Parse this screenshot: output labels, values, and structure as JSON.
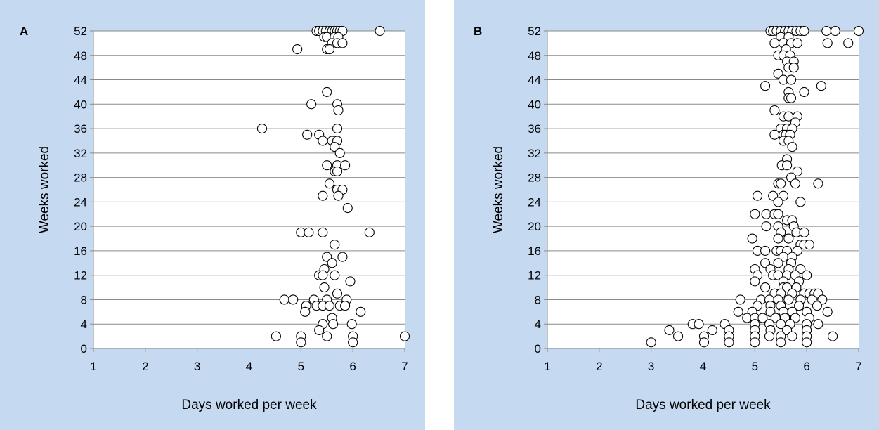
{
  "chart_data": [
    {
      "type": "scatter",
      "panel_label": "A",
      "title": "",
      "xlabel": "Days worked per week",
      "ylabel": "Weeks worked",
      "xlim": [
        1,
        7
      ],
      "ylim": [
        0,
        52
      ],
      "xticks": [
        1,
        2,
        3,
        4,
        5,
        6,
        7
      ],
      "yticks": [
        0,
        4,
        8,
        12,
        16,
        20,
        24,
        28,
        32,
        36,
        40,
        44,
        48,
        52
      ],
      "grid": "horizontal",
      "background": "#c5d9f1",
      "marker": {
        "fill": "#ffffff",
        "stroke": "#000000"
      },
      "points": [
        [
          5.3,
          52
        ],
        [
          5.35,
          52
        ],
        [
          5.42,
          52
        ],
        [
          5.48,
          52
        ],
        [
          5.55,
          52
        ],
        [
          5.6,
          52
        ],
        [
          5.65,
          52
        ],
        [
          5.7,
          52
        ],
        [
          5.75,
          52
        ],
        [
          5.8,
          52
        ],
        [
          6.52,
          52
        ],
        [
          5.45,
          51
        ],
        [
          5.5,
          51
        ],
        [
          5.65,
          51
        ],
        [
          5.72,
          51
        ],
        [
          5.6,
          50
        ],
        [
          5.7,
          50
        ],
        [
          5.8,
          50
        ],
        [
          4.93,
          49
        ],
        [
          5.5,
          49
        ],
        [
          5.55,
          49
        ],
        [
          5.5,
          42
        ],
        [
          5.2,
          40
        ],
        [
          5.7,
          40
        ],
        [
          5.72,
          39
        ],
        [
          4.25,
          36
        ],
        [
          5.7,
          36
        ],
        [
          5.12,
          35
        ],
        [
          5.35,
          35
        ],
        [
          5.42,
          34
        ],
        [
          5.6,
          34
        ],
        [
          5.7,
          34
        ],
        [
          5.65,
          33
        ],
        [
          5.75,
          32
        ],
        [
          5.7,
          30
        ],
        [
          5.5,
          30
        ],
        [
          5.85,
          30
        ],
        [
          5.65,
          29
        ],
        [
          5.7,
          29
        ],
        [
          5.55,
          27
        ],
        [
          5.7,
          26
        ],
        [
          5.8,
          26
        ],
        [
          5.72,
          25
        ],
        [
          5.42,
          25
        ],
        [
          5.9,
          23
        ],
        [
          5.0,
          19
        ],
        [
          5.15,
          19
        ],
        [
          5.42,
          19
        ],
        [
          6.32,
          19
        ],
        [
          5.65,
          17
        ],
        [
          5.5,
          15
        ],
        [
          5.8,
          15
        ],
        [
          5.6,
          14
        ],
        [
          5.45,
          13
        ],
        [
          5.35,
          12
        ],
        [
          5.42,
          12
        ],
        [
          5.65,
          12
        ],
        [
          5.95,
          11
        ],
        [
          5.45,
          10
        ],
        [
          5.7,
          9
        ],
        [
          4.68,
          8
        ],
        [
          4.85,
          8
        ],
        [
          5.25,
          8
        ],
        [
          5.5,
          8
        ],
        [
          5.88,
          8
        ],
        [
          5.1,
          7
        ],
        [
          5.3,
          7
        ],
        [
          5.42,
          7
        ],
        [
          5.55,
          7
        ],
        [
          5.75,
          7
        ],
        [
          5.85,
          7
        ],
        [
          5.08,
          6
        ],
        [
          6.15,
          6
        ],
        [
          5.6,
          5
        ],
        [
          5.62,
          4
        ],
        [
          5.42,
          4
        ],
        [
          5.98,
          4
        ],
        [
          5.35,
          3
        ],
        [
          4.52,
          2
        ],
        [
          5.0,
          2
        ],
        [
          5.5,
          2
        ],
        [
          6.0,
          2
        ],
        [
          7.0,
          2
        ],
        [
          5.0,
          1
        ],
        [
          6.0,
          1
        ]
      ]
    },
    {
      "type": "scatter",
      "panel_label": "B",
      "title": "",
      "xlabel": "Days worked per week",
      "ylabel": "Weeks worked",
      "xlim": [
        1,
        7
      ],
      "ylim": [
        0,
        52
      ],
      "xticks": [
        1,
        2,
        3,
        4,
        5,
        6,
        7
      ],
      "yticks": [
        0,
        4,
        8,
        12,
        16,
        20,
        24,
        28,
        32,
        36,
        40,
        44,
        48,
        52
      ],
      "grid": "horizontal",
      "background": "#c5d9f1",
      "marker": {
        "fill": "#ffffff",
        "stroke": "#000000"
      },
      "points": [
        [
          5.3,
          52
        ],
        [
          5.35,
          52
        ],
        [
          5.42,
          52
        ],
        [
          5.5,
          52
        ],
        [
          5.58,
          52
        ],
        [
          5.65,
          52
        ],
        [
          5.72,
          52
        ],
        [
          5.8,
          52
        ],
        [
          5.88,
          52
        ],
        [
          5.95,
          52
        ],
        [
          6.38,
          52
        ],
        [
          6.55,
          52
        ],
        [
          7.0,
          52
        ],
        [
          5.5,
          51
        ],
        [
          5.65,
          51
        ],
        [
          5.38,
          50
        ],
        [
          5.55,
          50
        ],
        [
          5.7,
          50
        ],
        [
          5.82,
          50
        ],
        [
          6.4,
          50
        ],
        [
          6.8,
          50
        ],
        [
          5.6,
          49
        ],
        [
          5.45,
          48
        ],
        [
          5.55,
          48
        ],
        [
          5.68,
          48
        ],
        [
          5.62,
          47
        ],
        [
          5.75,
          47
        ],
        [
          5.65,
          46
        ],
        [
          5.75,
          46
        ],
        [
          5.45,
          45
        ],
        [
          5.55,
          44
        ],
        [
          5.7,
          44
        ],
        [
          5.2,
          43
        ],
        [
          6.28,
          43
        ],
        [
          5.65,
          42
        ],
        [
          5.95,
          42
        ],
        [
          5.65,
          41
        ],
        [
          5.7,
          41
        ],
        [
          5.38,
          39
        ],
        [
          5.55,
          38
        ],
        [
          5.65,
          38
        ],
        [
          5.82,
          38
        ],
        [
          5.78,
          37
        ],
        [
          5.5,
          36
        ],
        [
          5.62,
          36
        ],
        [
          5.72,
          36
        ],
        [
          5.38,
          35
        ],
        [
          5.55,
          35
        ],
        [
          5.6,
          35
        ],
        [
          5.68,
          35
        ],
        [
          5.55,
          34
        ],
        [
          5.65,
          34
        ],
        [
          5.72,
          33
        ],
        [
          5.62,
          31
        ],
        [
          5.52,
          30
        ],
        [
          5.62,
          30
        ],
        [
          5.82,
          29
        ],
        [
          5.7,
          28
        ],
        [
          5.45,
          27
        ],
        [
          5.5,
          27
        ],
        [
          5.78,
          27
        ],
        [
          6.22,
          27
        ],
        [
          5.05,
          25
        ],
        [
          5.35,
          25
        ],
        [
          5.55,
          25
        ],
        [
          5.45,
          24
        ],
        [
          5.88,
          24
        ],
        [
          5.0,
          22
        ],
        [
          5.22,
          22
        ],
        [
          5.38,
          22
        ],
        [
          5.45,
          22
        ],
        [
          5.62,
          21
        ],
        [
          5.72,
          21
        ],
        [
          5.22,
          20
        ],
        [
          5.45,
          20
        ],
        [
          5.75,
          20
        ],
        [
          5.5,
          19
        ],
        [
          5.8,
          19
        ],
        [
          5.95,
          19
        ],
        [
          4.95,
          18
        ],
        [
          5.45,
          18
        ],
        [
          5.65,
          18
        ],
        [
          5.88,
          17
        ],
        [
          5.95,
          17
        ],
        [
          6.05,
          17
        ],
        [
          5.05,
          16
        ],
        [
          5.2,
          16
        ],
        [
          5.42,
          16
        ],
        [
          5.5,
          16
        ],
        [
          5.62,
          16
        ],
        [
          5.82,
          16
        ],
        [
          5.55,
          15
        ],
        [
          5.72,
          15
        ],
        [
          5.2,
          14
        ],
        [
          5.45,
          14
        ],
        [
          5.7,
          14
        ],
        [
          5.0,
          13
        ],
        [
          5.3,
          13
        ],
        [
          5.65,
          13
        ],
        [
          5.88,
          13
        ],
        [
          5.05,
          12
        ],
        [
          5.35,
          12
        ],
        [
          5.45,
          12
        ],
        [
          5.62,
          12
        ],
        [
          5.78,
          12
        ],
        [
          6.0,
          12
        ],
        [
          5.0,
          11
        ],
        [
          5.55,
          11
        ],
        [
          5.85,
          11
        ],
        [
          5.2,
          10
        ],
        [
          5.55,
          10
        ],
        [
          5.62,
          10
        ],
        [
          5.8,
          10
        ],
        [
          5.38,
          9
        ],
        [
          5.5,
          9
        ],
        [
          5.72,
          9
        ],
        [
          5.95,
          9
        ],
        [
          6.05,
          9
        ],
        [
          6.15,
          9
        ],
        [
          6.22,
          9
        ],
        [
          4.72,
          8
        ],
        [
          5.12,
          8
        ],
        [
          5.28,
          8
        ],
        [
          5.45,
          8
        ],
        [
          5.65,
          8
        ],
        [
          5.88,
          8
        ],
        [
          6.1,
          8
        ],
        [
          6.3,
          8
        ],
        [
          5.05,
          7
        ],
        [
          5.3,
          7
        ],
        [
          5.5,
          7
        ],
        [
          5.85,
          7
        ],
        [
          6.2,
          7
        ],
        [
          4.68,
          6
        ],
        [
          4.95,
          6
        ],
        [
          5.3,
          6
        ],
        [
          5.55,
          6
        ],
        [
          5.72,
          6
        ],
        [
          6.0,
          6
        ],
        [
          6.4,
          6
        ],
        [
          4.85,
          5
        ],
        [
          5.0,
          5
        ],
        [
          5.15,
          5
        ],
        [
          5.4,
          5
        ],
        [
          5.58,
          5
        ],
        [
          5.78,
          5
        ],
        [
          6.05,
          5
        ],
        [
          3.8,
          4
        ],
        [
          3.92,
          4
        ],
        [
          4.42,
          4
        ],
        [
          5.0,
          4
        ],
        [
          5.28,
          4
        ],
        [
          5.5,
          4
        ],
        [
          5.68,
          4
        ],
        [
          6.0,
          4
        ],
        [
          6.22,
          4
        ],
        [
          3.35,
          3
        ],
        [
          4.18,
          3
        ],
        [
          4.5,
          3
        ],
        [
          5.0,
          3
        ],
        [
          5.3,
          3
        ],
        [
          5.62,
          3
        ],
        [
          6.0,
          3
        ],
        [
          3.52,
          2
        ],
        [
          4.02,
          2
        ],
        [
          4.5,
          2
        ],
        [
          5.0,
          2
        ],
        [
          5.28,
          2
        ],
        [
          5.5,
          2
        ],
        [
          5.72,
          2
        ],
        [
          6.0,
          2
        ],
        [
          6.5,
          2
        ],
        [
          3.0,
          1
        ],
        [
          4.02,
          1
        ],
        [
          4.5,
          1
        ],
        [
          5.0,
          1
        ],
        [
          5.5,
          1
        ],
        [
          6.0,
          1
        ]
      ]
    }
  ]
}
